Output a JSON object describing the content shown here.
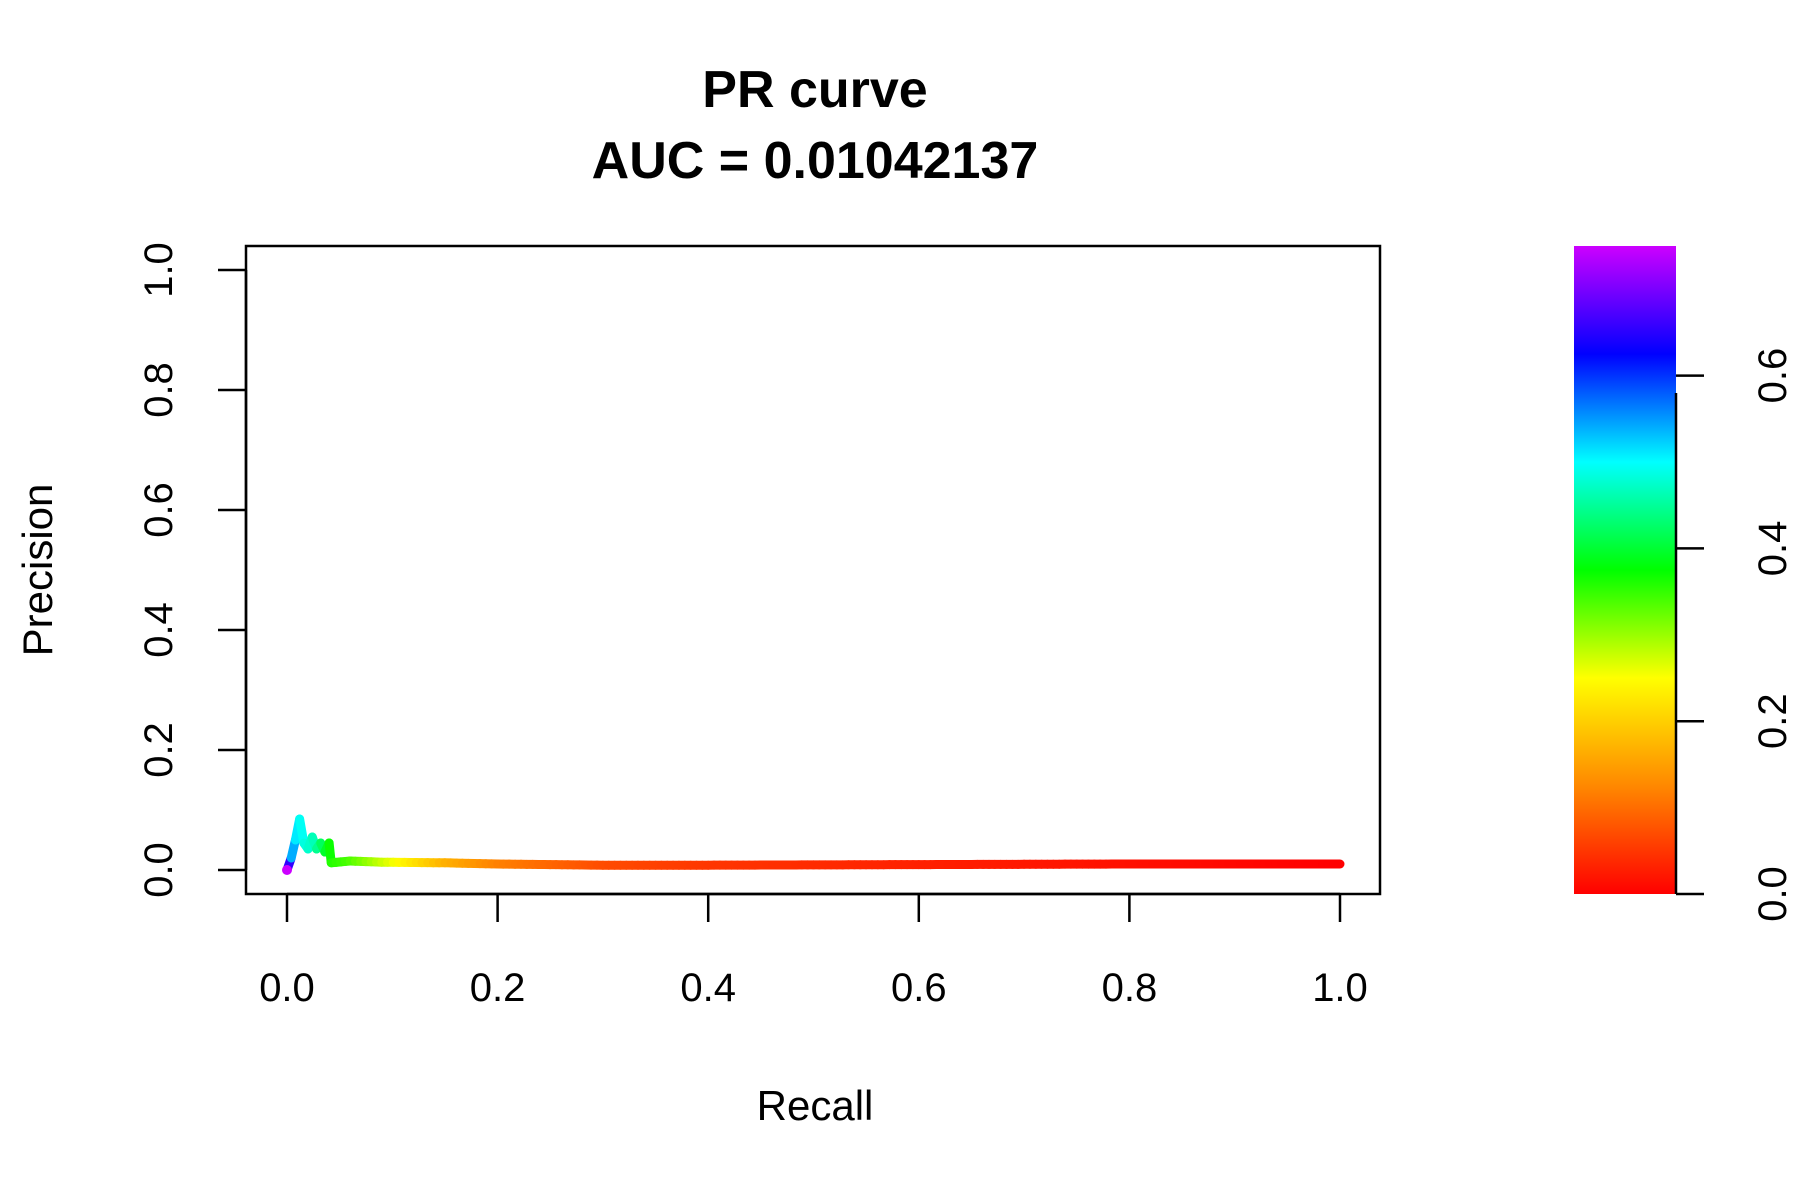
{
  "chart_data": {
    "type": "line",
    "title": "PR curve",
    "subtitle": "AUC = 0.01042137",
    "xlabel": "Recall",
    "ylabel": "Precision",
    "xlim": [
      0,
      1
    ],
    "ylim": [
      0,
      1
    ],
    "x_ticks": [
      "0.0",
      "0.2",
      "0.4",
      "0.6",
      "0.8",
      "1.0"
    ],
    "y_ticks": [
      "0.0",
      "0.2",
      "0.4",
      "0.6",
      "0.8",
      "1.0"
    ],
    "grid": false,
    "legend": "none",
    "series": [
      {
        "points": [
          {
            "x": 0.0,
            "y": 0.0,
            "t": 0.75
          },
          {
            "x": 0.004,
            "y": 0.02,
            "t": 0.56
          },
          {
            "x": 0.008,
            "y": 0.05,
            "t": 0.52
          },
          {
            "x": 0.012,
            "y": 0.085,
            "t": 0.5
          },
          {
            "x": 0.016,
            "y": 0.045,
            "t": 0.49
          },
          {
            "x": 0.02,
            "y": 0.035,
            "t": 0.48
          },
          {
            "x": 0.024,
            "y": 0.055,
            "t": 0.47
          },
          {
            "x": 0.028,
            "y": 0.035,
            "t": 0.46
          },
          {
            "x": 0.032,
            "y": 0.045,
            "t": 0.43
          },
          {
            "x": 0.036,
            "y": 0.03,
            "t": 0.41
          },
          {
            "x": 0.04,
            "y": 0.045,
            "t": 0.38
          },
          {
            "x": 0.042,
            "y": 0.012,
            "t": 0.36
          },
          {
            "x": 0.06,
            "y": 0.015,
            "t": 0.34
          },
          {
            "x": 0.09,
            "y": 0.013,
            "t": 0.28
          },
          {
            "x": 0.15,
            "y": 0.012,
            "t": 0.17
          },
          {
            "x": 0.2,
            "y": 0.01,
            "t": 0.12
          },
          {
            "x": 0.3,
            "y": 0.008,
            "t": 0.07
          },
          {
            "x": 0.4,
            "y": 0.008,
            "t": 0.05
          },
          {
            "x": 0.6,
            "y": 0.009,
            "t": 0.03
          },
          {
            "x": 0.8,
            "y": 0.01,
            "t": 0.015
          },
          {
            "x": 1.0,
            "y": 0.01,
            "t": 0.0
          }
        ]
      }
    ],
    "colorbar": {
      "ticks": [
        "0.0",
        "0.2",
        "0.4",
        "0.6"
      ],
      "range": [
        0,
        0.75
      ],
      "colors": [
        "#ff0000",
        "#ff8800",
        "#ffff00",
        "#00ff00",
        "#00ffff",
        "#0000ff",
        "#cc00ff"
      ]
    }
  }
}
